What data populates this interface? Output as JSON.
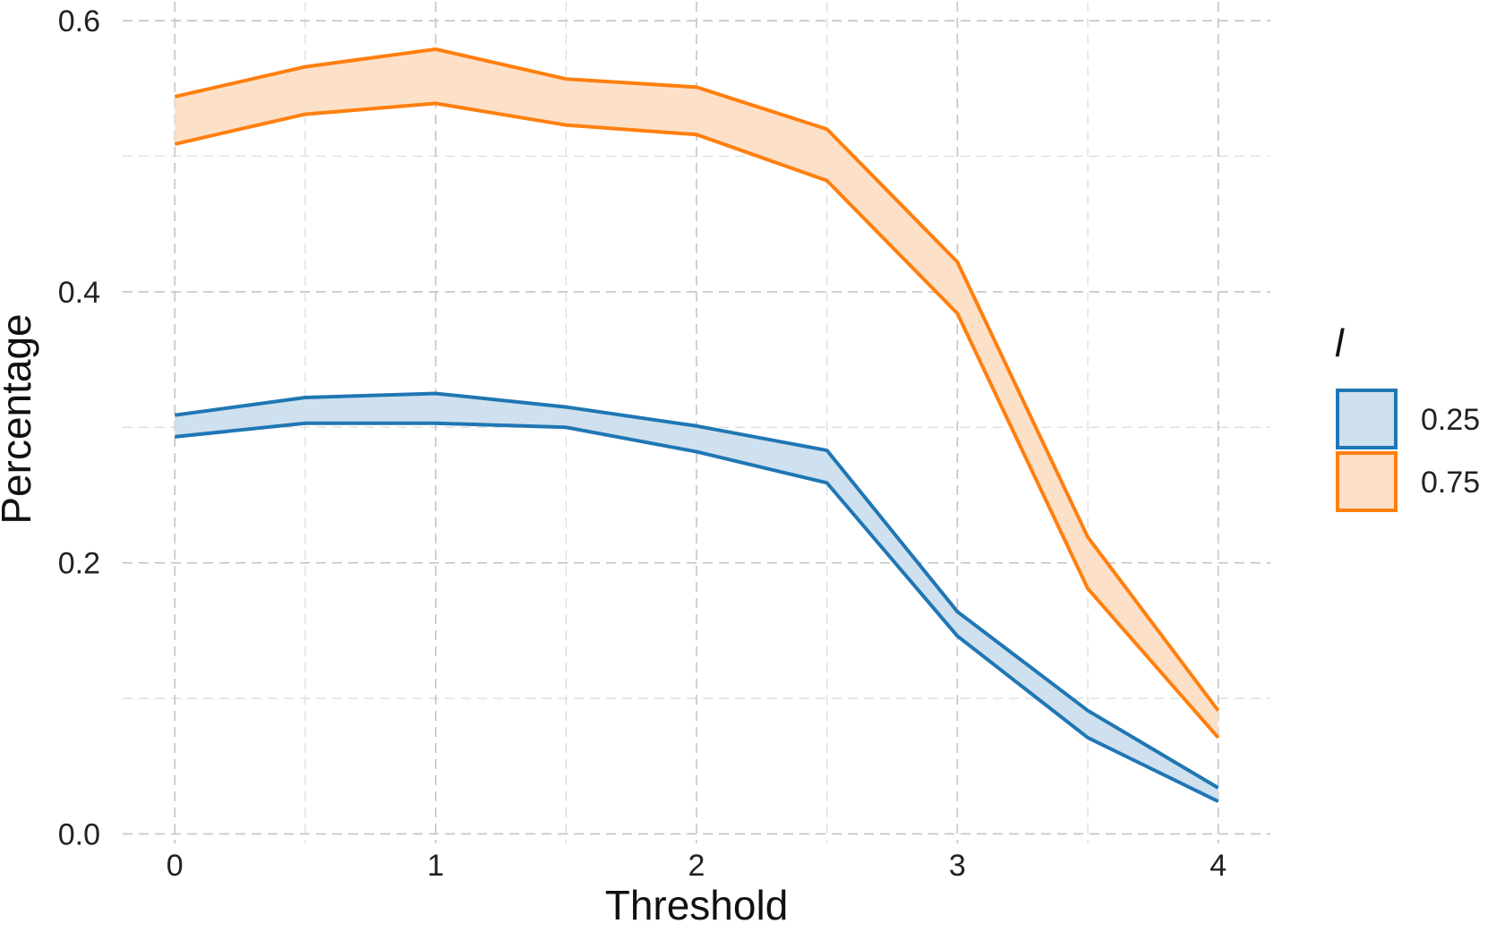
{
  "chart_data": {
    "type": "area",
    "xlabel": "Threshold",
    "ylabel": "Percentage",
    "xlim": [
      -0.2,
      4.2
    ],
    "ylim": [
      -0.003,
      0.61
    ],
    "x_ticks": [
      "0",
      "1",
      "2",
      "3",
      "4"
    ],
    "y_ticks": [
      "0.0",
      "0.2",
      "0.4",
      "0.6"
    ],
    "grid": true,
    "legend": {
      "title": "l",
      "position": "right"
    },
    "x": [
      0,
      0.5,
      1,
      1.5,
      2,
      2.5,
      3,
      3.5,
      4
    ],
    "series": [
      {
        "name": "0.25",
        "line_color": "#1f77b4",
        "fill_color": "#cfe0ee",
        "upper": [
          0.309,
          0.322,
          0.325,
          0.315,
          0.301,
          0.283,
          0.164,
          0.091,
          0.034
        ],
        "lower": [
          0.293,
          0.303,
          0.303,
          0.3,
          0.282,
          0.259,
          0.146,
          0.071,
          0.024
        ]
      },
      {
        "name": "0.75",
        "line_color": "#ff7f0e",
        "fill_color": "#fde0c8",
        "upper": [
          0.544,
          0.566,
          0.579,
          0.557,
          0.551,
          0.52,
          0.422,
          0.219,
          0.091
        ],
        "lower": [
          0.509,
          0.531,
          0.539,
          0.523,
          0.516,
          0.482,
          0.384,
          0.181,
          0.071
        ]
      }
    ]
  }
}
